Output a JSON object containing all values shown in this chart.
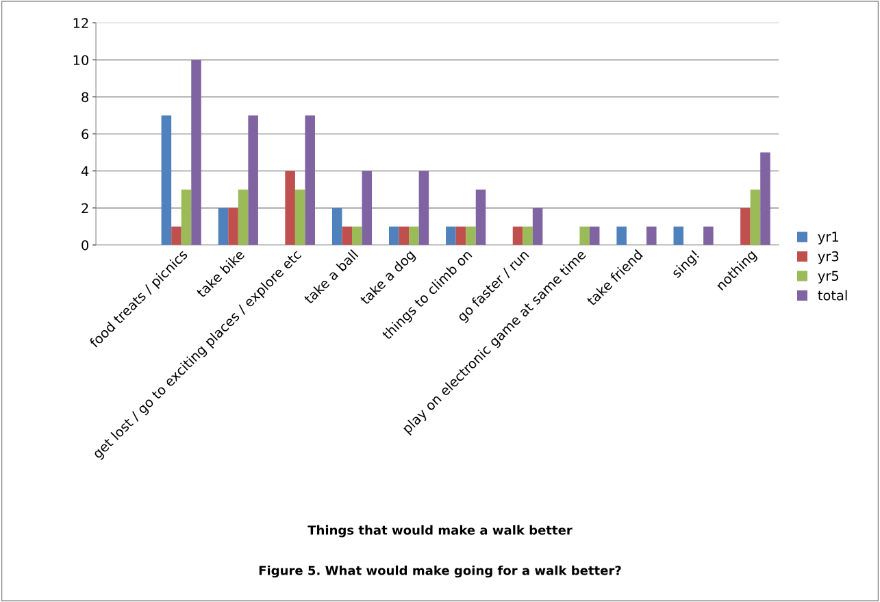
{
  "chart_data": {
    "type": "bar",
    "categories": [
      null,
      "food treats / picnics",
      "take bike",
      "get lost / go to exciting places / explore etc",
      "take a ball",
      "take a dog",
      "things to climb on",
      "go faster / run",
      "play on electronic game at same time",
      "take friend",
      "sing!",
      "nothing"
    ],
    "series": [
      {
        "name": "yr1",
        "color": "#4f81bd",
        "values": [
          null,
          7,
          2,
          null,
          2,
          1,
          1,
          null,
          null,
          1,
          1,
          null
        ]
      },
      {
        "name": "yr3",
        "color": "#c0504d",
        "values": [
          null,
          1,
          2,
          4,
          1,
          1,
          1,
          1,
          null,
          null,
          null,
          2
        ]
      },
      {
        "name": "yr5",
        "color": "#9bbb59",
        "values": [
          null,
          3,
          3,
          3,
          1,
          1,
          1,
          1,
          1,
          null,
          null,
          3
        ]
      },
      {
        "name": "total",
        "color": "#8064a2",
        "values": [
          null,
          10,
          7,
          7,
          4,
          4,
          3,
          2,
          1,
          1,
          1,
          5
        ]
      }
    ],
    "ylim": [
      0,
      12
    ],
    "yticks": [
      0,
      2,
      4,
      6,
      8,
      10,
      12
    ],
    "grid": "y",
    "legend": "right",
    "annotations": [
      "Things that would make a walk better",
      "Figure 5. What would make going for a walk better?"
    ]
  }
}
